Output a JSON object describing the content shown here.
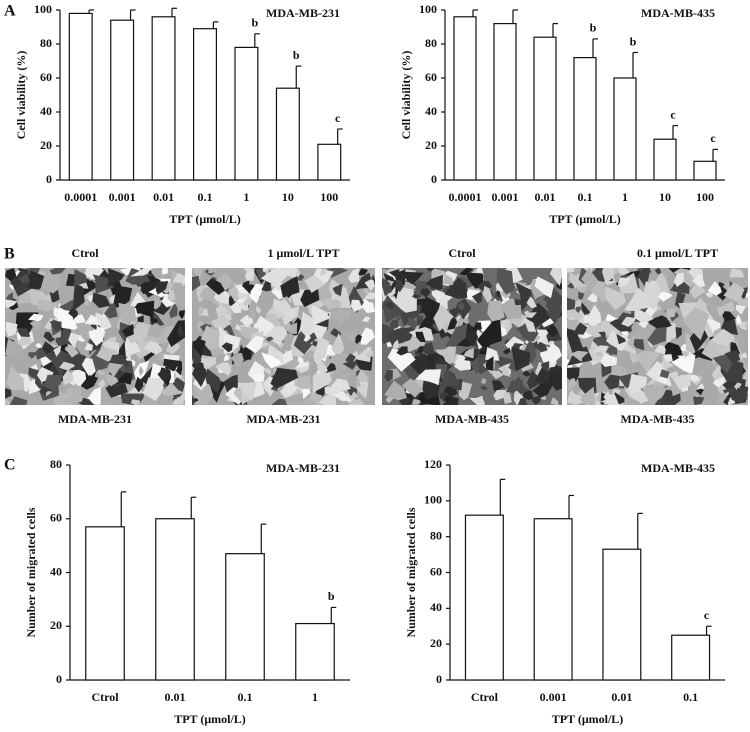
{
  "panel_labels": [
    "A",
    "B",
    "C"
  ],
  "micrographs": [
    {
      "title": "Ctrol",
      "caption": "MDA-MB-231"
    },
    {
      "title": "1 μmol/L TPT",
      "caption": "MDA-MB-231"
    },
    {
      "title": "Ctrol",
      "caption": "MDA-MB-435"
    },
    {
      "title": "0.1 μmol/L TPT",
      "caption": "MDA-MB-435"
    }
  ],
  "chart_data": [
    {
      "type": "bar",
      "title": "MDA-MB-231",
      "x_label": "TPT (μmol/L)",
      "y_label": "Cell viability (%)",
      "categories": [
        "0.0001",
        "0.001",
        "0.01",
        "0.1",
        "1",
        "10",
        "100"
      ],
      "values": [
        98,
        94,
        96,
        89,
        78,
        54,
        21
      ],
      "errors": [
        2,
        6,
        5,
        4,
        8,
        13,
        9
      ],
      "value_annotations": [
        null,
        null,
        null,
        null,
        "b",
        "b",
        "c"
      ],
      "color": "#ffffff",
      "ylim": [
        0,
        100
      ],
      "yticks": [
        0,
        20,
        40,
        60,
        80,
        100
      ]
    },
    {
      "type": "bar",
      "title": "MDA-MB-435",
      "x_label": "TPT (μmol/L)",
      "y_label": "Cell viability (%)",
      "categories": [
        "0.0001",
        "0.001",
        "0.01",
        "0.1",
        "1",
        "10",
        "100"
      ],
      "values": [
        96,
        92,
        84,
        72,
        60,
        24,
        11
      ],
      "errors": [
        4,
        8,
        8,
        11,
        15,
        8,
        7
      ],
      "value_annotations": [
        null,
        null,
        null,
        "b",
        "b",
        "c",
        "c"
      ],
      "color": "#ffffff",
      "ylim": [
        0,
        100
      ],
      "yticks": [
        0,
        20,
        40,
        60,
        80,
        100
      ]
    },
    {
      "type": "bar",
      "title": "MDA-MB-231",
      "x_label": "TPT (μmol/L)",
      "y_label": "Number of migrated cells",
      "categories": [
        "Ctrol",
        "0.01",
        "0.1",
        "1"
      ],
      "values": [
        57,
        60,
        47,
        21
      ],
      "errors": [
        13,
        8,
        11,
        6
      ],
      "value_annotations": [
        null,
        null,
        null,
        "b"
      ],
      "color": "#ffffff",
      "ylim": [
        0,
        80
      ],
      "yticks": [
        0,
        20,
        40,
        60,
        80
      ]
    },
    {
      "type": "bar",
      "title": "MDA-MB-435",
      "x_label": "TPT (μmol/L)",
      "y_label": "Number of migrated cells",
      "categories": [
        "Ctrol",
        "0.001",
        "0.01",
        "0.1"
      ],
      "values": [
        92,
        90,
        73,
        25
      ],
      "errors": [
        20,
        13,
        20,
        5
      ],
      "value_annotations": [
        null,
        null,
        null,
        "c"
      ],
      "color": "#ffffff",
      "ylim": [
        0,
        120
      ],
      "yticks": [
        0,
        20,
        40,
        60,
        80,
        100,
        120
      ]
    }
  ]
}
